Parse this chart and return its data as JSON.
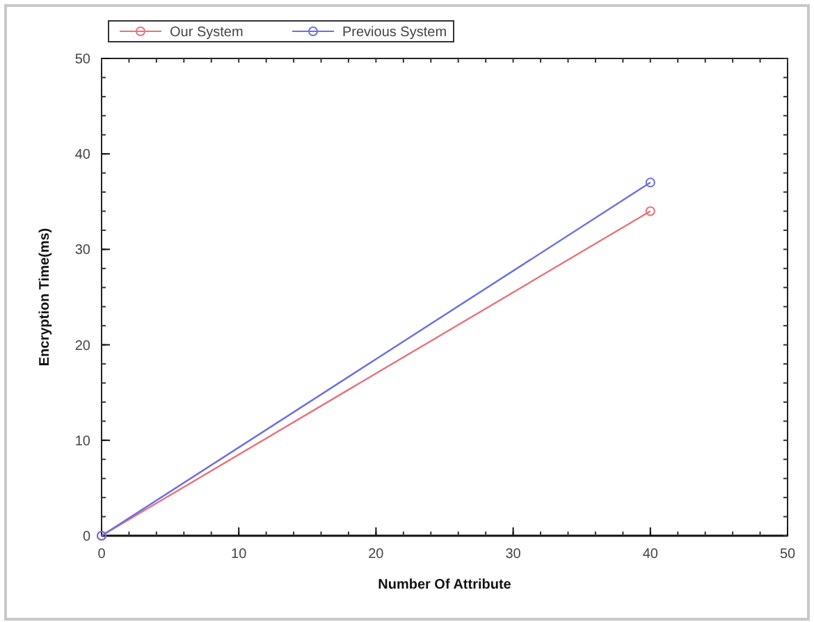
{
  "chart_data": {
    "type": "line",
    "xlabel": "Number Of Attribute",
    "ylabel": "Encryption Time(ms)",
    "x": [
      0,
      40
    ],
    "series": [
      {
        "name": "Our System",
        "color": "#e8727a",
        "values": [
          0,
          34
        ]
      },
      {
        "name": "Previous System",
        "color": "#6b6fe0",
        "values": [
          0,
          37
        ]
      }
    ],
    "xlim": [
      0,
      50
    ],
    "xticks": [
      0,
      10,
      20,
      30,
      40,
      50
    ],
    "ylim": [
      0,
      50
    ],
    "yticks": [
      0,
      10,
      20,
      30,
      40,
      50
    ],
    "grid": false,
    "legend": "top left",
    "marker": "circle",
    "line_style": "solid"
  }
}
